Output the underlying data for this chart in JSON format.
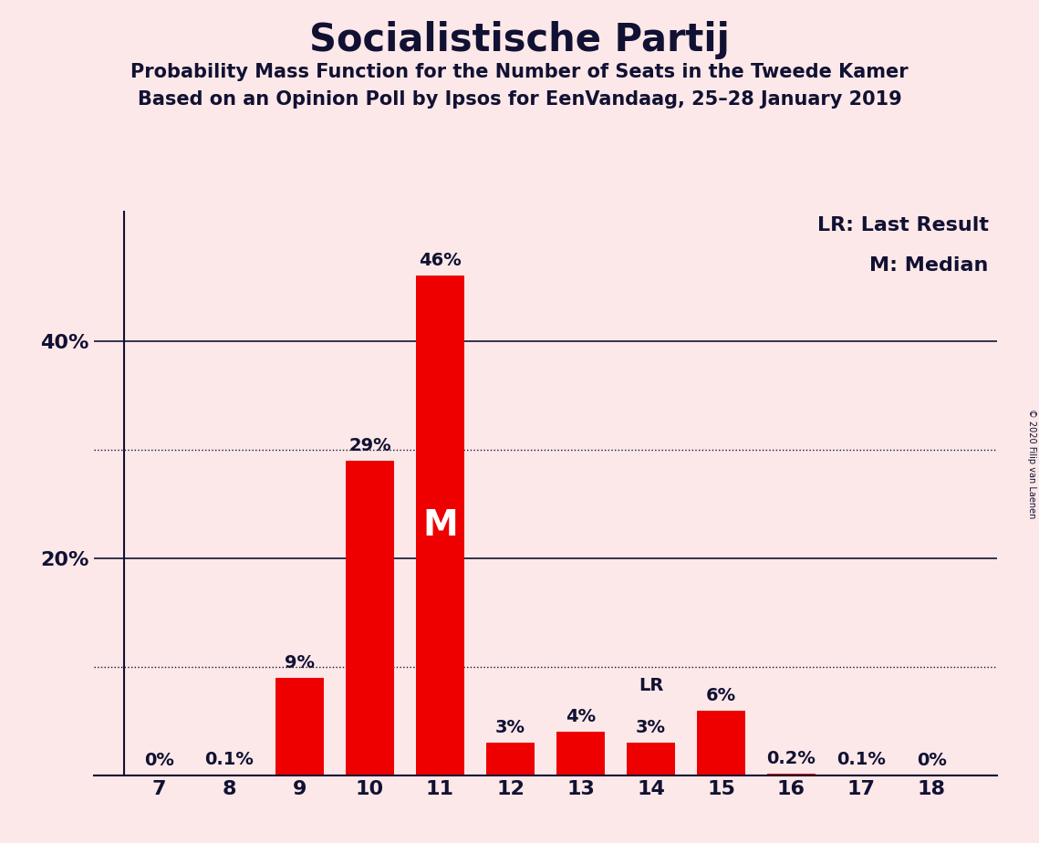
{
  "title": "Socialistische Partij",
  "subtitle1": "Probability Mass Function for the Number of Seats in the Tweede Kamer",
  "subtitle2": "Based on an Opinion Poll by Ipsos for EenVandaag, 25–28 January 2019",
  "copyright": "© 2020 Filip van Laenen",
  "categories": [
    7,
    8,
    9,
    10,
    11,
    12,
    13,
    14,
    15,
    16,
    17,
    18
  ],
  "values": [
    0.0,
    0.1,
    9.0,
    29.0,
    46.0,
    3.0,
    4.0,
    3.0,
    6.0,
    0.2,
    0.1,
    0.0
  ],
  "labels": [
    "0%",
    "0.1%",
    "9%",
    "29%",
    "46%",
    "3%",
    "4%",
    "3%",
    "6%",
    "0.2%",
    "0.1%",
    "0%"
  ],
  "bar_color": "#ee0000",
  "background_color": "#fce8e8",
  "text_color": "#111133",
  "ylim": [
    0,
    52
  ],
  "median_bar": 11,
  "lr_bar": 14,
  "legend_lr": "LR: Last Result",
  "legend_m": "M: Median",
  "solid_lines": [
    20,
    40
  ],
  "dotted_lines": [
    10,
    30
  ],
  "ytick_positions": [
    20,
    40
  ],
  "ytick_labels": [
    "20%",
    "40%"
  ]
}
